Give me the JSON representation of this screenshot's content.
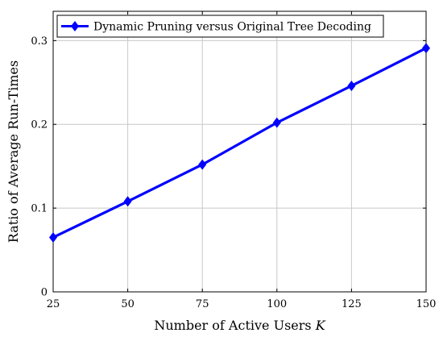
{
  "chart_data": {
    "type": "line",
    "title": "",
    "xlabel": "Number of Active Users K",
    "xlabel_main": "Number of Active Users ",
    "xlabel_var": "K",
    "ylabel": "Ratio of Average Run-Times",
    "x": [
      25,
      50,
      75,
      100,
      125,
      150
    ],
    "xlim": [
      25,
      150
    ],
    "ylim": [
      0,
      0.335
    ],
    "xticks": [
      25,
      50,
      75,
      100,
      125,
      150
    ],
    "yticks": [
      0,
      0.1,
      0.2,
      0.3
    ],
    "ytick_labels": [
      "0",
      "0.1",
      "0.2",
      "0.3"
    ],
    "grid": true,
    "legend_position": "top-left",
    "series": [
      {
        "name": "Dynamic Pruning versus Original Tree Decoding",
        "values": [
          0.065,
          0.108,
          0.152,
          0.202,
          0.246,
          0.291
        ],
        "color": "#0000ff",
        "marker": "diamond"
      }
    ]
  }
}
